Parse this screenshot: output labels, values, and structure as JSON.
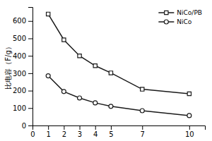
{
  "chart_data": {
    "type": "line",
    "x": [
      1,
      2,
      3,
      4,
      5,
      7,
      10
    ],
    "series": [
      {
        "name": "NiCo/PB",
        "color": "#1a1a1a",
        "marker": "square",
        "values": [
          640,
          492,
          400,
          343,
          302,
          208,
          182
        ]
      },
      {
        "name": "NiCo",
        "color": "#1a1a1a",
        "marker": "circle",
        "values": [
          285,
          195,
          158,
          130,
          110,
          85,
          57
        ]
      }
    ],
    "ylabel": "比电容（F/g）",
    "xlim": [
      0,
      11
    ],
    "ylim": [
      0,
      680
    ],
    "xticks": [
      0,
      1,
      2,
      3,
      4,
      5,
      7,
      10
    ],
    "yticks": [
      0,
      100,
      200,
      300,
      400,
      500,
      600
    ],
    "legend": "upper right",
    "grid": false
  }
}
